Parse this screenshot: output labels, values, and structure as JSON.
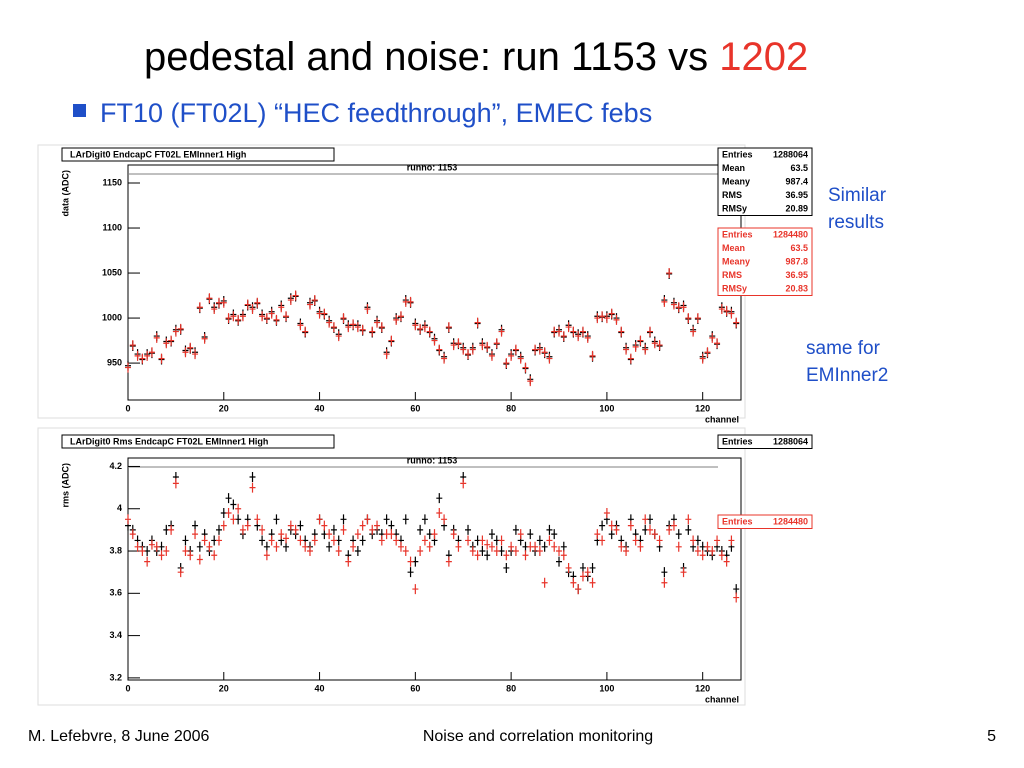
{
  "slide": {
    "title": "pedestal and noise: run 1153 vs ",
    "title_highlight": "1202",
    "bullet": "FT10 (FT02L) “HEC feedthrough”, EMEC febs",
    "note1": [
      "Similar",
      "results"
    ],
    "note2": [
      "same for",
      "EMInner2"
    ],
    "footer_left": "M. Lefebvre, 8 June 2006",
    "footer_center": "Noise and correlation monitoring",
    "page": 5
  },
  "chart_data": [
    {
      "type": "scatter",
      "title": "LArDigit0 EndcapC FT02L EMInner1 High",
      "subtitle": "runno: 1153",
      "y_label": "data (ADC)",
      "x_label": "channel",
      "xlim": [
        0,
        128
      ],
      "xticks": [
        0,
        20,
        40,
        60,
        80,
        100,
        120
      ],
      "ylim": [
        909,
        1170
      ],
      "yticks": [
        950,
        1000,
        1050,
        1100,
        1150
      ],
      "x": [
        0,
        1,
        2,
        3,
        4,
        5,
        6,
        7,
        8,
        9,
        10,
        11,
        12,
        13,
        14,
        15,
        16,
        17,
        18,
        19,
        20,
        21,
        22,
        23,
        24,
        25,
        26,
        27,
        28,
        29,
        30,
        31,
        32,
        33,
        34,
        35,
        36,
        37,
        38,
        39,
        40,
        41,
        42,
        43,
        44,
        45,
        46,
        47,
        48,
        49,
        50,
        51,
        52,
        53,
        54,
        55,
        56,
        57,
        58,
        59,
        60,
        61,
        62,
        63,
        64,
        65,
        66,
        67,
        68,
        69,
        70,
        71,
        72,
        73,
        74,
        75,
        76,
        77,
        78,
        79,
        80,
        81,
        82,
        83,
        84,
        85,
        86,
        87,
        88,
        89,
        90,
        91,
        92,
        93,
        94,
        95,
        96,
        97,
        98,
        99,
        100,
        101,
        102,
        103,
        104,
        105,
        106,
        107,
        108,
        109,
        110,
        111,
        112,
        113,
        114,
        115,
        116,
        117,
        118,
        119,
        120,
        121,
        122,
        123,
        124,
        125,
        126,
        127
      ],
      "series": [
        {
          "color": "#000000",
          "values": [
            947,
            969,
            960,
            954,
            960,
            961,
            980,
            954,
            974,
            974,
            987,
            987,
            964,
            966,
            962,
            1011,
            979,
            1021,
            1012,
            1016,
            1019,
            999,
            1004,
            997,
            1004,
            1014,
            1012,
            1016,
            1004,
            999,
            1007,
            997,
            1014,
            1001,
            1022,
            1024,
            994,
            984,
            1017,
            1019,
            1007,
            1004,
            997,
            989,
            982,
            999,
            992,
            992,
            992,
            986,
            1012,
            984,
            997,
            989,
            962,
            974,
            1000,
            1001,
            1020,
            1017,
            994,
            987,
            992,
            984,
            977,
            964,
            957,
            989,
            972,
            971,
            967,
            959,
            967,
            994,
            972,
            967,
            960,
            971,
            987,
            949,
            960,
            964,
            957,
            944,
            932,
            964,
            967,
            961,
            957,
            984,
            987,
            979,
            992,
            984,
            982,
            984,
            980,
            957,
            1002,
            1001,
            1002,
            1004,
            1000,
            984,
            967,
            954,
            970,
            974,
            967,
            984,
            974,
            969,
            1020,
            1049,
            1017,
            1011,
            1014,
            999,
            987,
            999,
            957,
            961,
            980,
            971,
            1012,
            1007,
            1007,
            994
          ],
          "stats": [
            {
              "label": "Entries",
              "value": 1288064
            },
            {
              "label": "Mean",
              "value": 63.5
            },
            {
              "label": "Meany",
              "value": 987.4
            },
            {
              "label": "RMS",
              "value": 36.95
            },
            {
              "label": "RMSy",
              "value": 20.89
            }
          ]
        },
        {
          "color": "#e8342a",
          "values": [
            945,
            970,
            958,
            955,
            958,
            962,
            978,
            955,
            972,
            975,
            985,
            988,
            962,
            967,
            960,
            1012,
            977,
            1022,
            1010,
            1017,
            1017,
            1000,
            1002,
            998,
            1002,
            1015,
            1010,
            1017,
            1002,
            1000,
            1005,
            998,
            1012,
            1002,
            1020,
            1025,
            992,
            985,
            1015,
            1020,
            1005,
            1005,
            995,
            990,
            980,
            1000,
            990,
            993,
            990,
            987,
            1010,
            985,
            995,
            990,
            960,
            975,
            998,
            1002,
            1018,
            1018,
            992,
            988,
            990,
            985,
            975,
            965,
            955,
            990,
            970,
            972,
            965,
            960,
            965,
            995,
            970,
            968,
            958,
            972,
            985,
            950,
            958,
            965,
            955,
            945,
            930,
            965,
            965,
            962,
            955,
            985,
            985,
            980,
            990,
            985,
            980,
            985,
            978,
            958,
            1000,
            1002,
            1000,
            1005,
            998,
            985,
            965,
            955,
            968,
            975,
            965,
            985,
            972,
            970,
            1018,
            1050,
            1015,
            1012,
            1012,
            1000,
            985,
            1000,
            955,
            962,
            978,
            972,
            1010,
            1008,
            1005,
            995
          ],
          "stats": [
            {
              "label": "Entries",
              "value": 1284480
            },
            {
              "label": "Mean",
              "value": 63.5
            },
            {
              "label": "Meany",
              "value": 987.8
            },
            {
              "label": "RMS",
              "value": 36.95
            },
            {
              "label": "RMSy",
              "value": 20.83
            }
          ]
        }
      ]
    },
    {
      "type": "scatter",
      "title": "LArDigit0 Rms EndcapC FT02L EMInner1 High",
      "subtitle": "runno: 1153",
      "y_label": "rms (ADC)",
      "x_label": "channel",
      "xlim": [
        0,
        128
      ],
      "xticks": [
        0,
        20,
        40,
        60,
        80,
        100,
        120
      ],
      "ylim": [
        3.19,
        4.24
      ],
      "yticks": [
        3.2,
        3.4,
        3.6,
        3.8,
        4,
        4.2
      ],
      "x": [
        0,
        1,
        2,
        3,
        4,
        5,
        6,
        7,
        8,
        9,
        10,
        11,
        12,
        13,
        14,
        15,
        16,
        17,
        18,
        19,
        20,
        21,
        22,
        23,
        24,
        25,
        26,
        27,
        28,
        29,
        30,
        31,
        32,
        33,
        34,
        35,
        36,
        37,
        38,
        39,
        40,
        41,
        42,
        43,
        44,
        45,
        46,
        47,
        48,
        49,
        50,
        51,
        52,
        53,
        54,
        55,
        56,
        57,
        58,
        59,
        60,
        61,
        62,
        63,
        64,
        65,
        66,
        67,
        68,
        69,
        70,
        71,
        72,
        73,
        74,
        75,
        76,
        77,
        78,
        79,
        80,
        81,
        82,
        83,
        84,
        85,
        86,
        87,
        88,
        89,
        90,
        91,
        92,
        93,
        94,
        95,
        96,
        97,
        98,
        99,
        100,
        101,
        102,
        103,
        104,
        105,
        106,
        107,
        108,
        109,
        110,
        111,
        112,
        113,
        114,
        115,
        116,
        117,
        118,
        119,
        120,
        121,
        122,
        123,
        124,
        125,
        126,
        127
      ],
      "series": [
        {
          "color": "#000000",
          "values": [
            3.92,
            3.9,
            3.85,
            3.82,
            3.8,
            3.85,
            3.8,
            3.82,
            3.9,
            3.92,
            4.15,
            3.72,
            3.85,
            3.8,
            3.92,
            3.82,
            3.88,
            3.8,
            3.85,
            3.9,
            3.98,
            4.05,
            4.02,
            3.95,
            3.88,
            3.95,
            4.15,
            3.92,
            3.85,
            3.82,
            3.88,
            3.95,
            3.85,
            3.82,
            3.9,
            3.88,
            3.92,
            3.85,
            3.82,
            3.88,
            3.95,
            3.88,
            3.82,
            3.9,
            3.85,
            3.95,
            3.78,
            3.85,
            3.8,
            3.85,
            3.95,
            3.88,
            3.9,
            3.88,
            3.95,
            3.92,
            3.88,
            3.85,
            3.95,
            3.7,
            3.75,
            3.9,
            3.95,
            3.88,
            3.85,
            4.05,
            3.92,
            3.78,
            3.9,
            3.85,
            4.15,
            3.9,
            3.82,
            3.85,
            3.8,
            3.78,
            3.88,
            3.85,
            3.8,
            3.72,
            3.8,
            3.9,
            3.85,
            3.82,
            3.88,
            3.8,
            3.85,
            3.82,
            3.9,
            3.88,
            3.75,
            3.82,
            3.7,
            3.68,
            3.62,
            3.72,
            3.68,
            3.72,
            3.85,
            3.92,
            3.95,
            3.88,
            3.92,
            3.85,
            3.82,
            3.95,
            3.88,
            3.85,
            3.9,
            3.95,
            3.88,
            3.82,
            3.7,
            3.92,
            3.95,
            3.88,
            3.72,
            3.9,
            3.82,
            3.85,
            3.82,
            3.8,
            3.78,
            3.82,
            3.8,
            3.78,
            3.82,
            3.62
          ],
          "stats": [
            {
              "label": "Entries",
              "value": 1288064
            }
          ]
        },
        {
          "color": "#e8342a",
          "values": [
            3.95,
            3.88,
            3.82,
            3.8,
            3.75,
            3.83,
            3.82,
            3.78,
            3.8,
            3.9,
            4.12,
            3.7,
            3.8,
            3.78,
            3.88,
            3.76,
            3.85,
            3.82,
            3.78,
            3.85,
            3.92,
            3.98,
            3.95,
            4.0,
            3.9,
            3.92,
            4.1,
            3.95,
            3.9,
            3.78,
            3.85,
            3.82,
            3.88,
            3.86,
            3.92,
            3.9,
            3.85,
            3.82,
            3.8,
            3.85,
            3.95,
            3.92,
            3.88,
            3.85,
            3.8,
            3.9,
            3.75,
            3.82,
            3.88,
            3.92,
            3.95,
            3.9,
            3.92,
            3.85,
            3.88,
            3.88,
            3.85,
            3.82,
            3.8,
            3.75,
            3.62,
            3.8,
            3.85,
            3.82,
            3.88,
            3.98,
            3.95,
            3.75,
            3.88,
            3.82,
            4.12,
            3.85,
            3.8,
            3.78,
            3.85,
            3.83,
            3.82,
            3.8,
            3.85,
            3.78,
            3.82,
            3.8,
            3.88,
            3.78,
            3.82,
            3.82,
            3.8,
            3.65,
            3.85,
            3.82,
            3.8,
            3.78,
            3.72,
            3.65,
            3.62,
            3.68,
            3.7,
            3.65,
            3.88,
            3.85,
            3.98,
            3.92,
            3.9,
            3.82,
            3.8,
            3.92,
            3.85,
            3.82,
            3.95,
            3.9,
            3.88,
            3.85,
            3.65,
            3.9,
            3.92,
            3.82,
            3.7,
            3.95,
            3.85,
            3.8,
            3.78,
            3.82,
            3.8,
            3.85,
            3.78,
            3.75,
            3.85,
            3.58
          ],
          "stats": [
            {
              "label": "Entries",
              "value": 1284480
            }
          ]
        }
      ]
    }
  ]
}
